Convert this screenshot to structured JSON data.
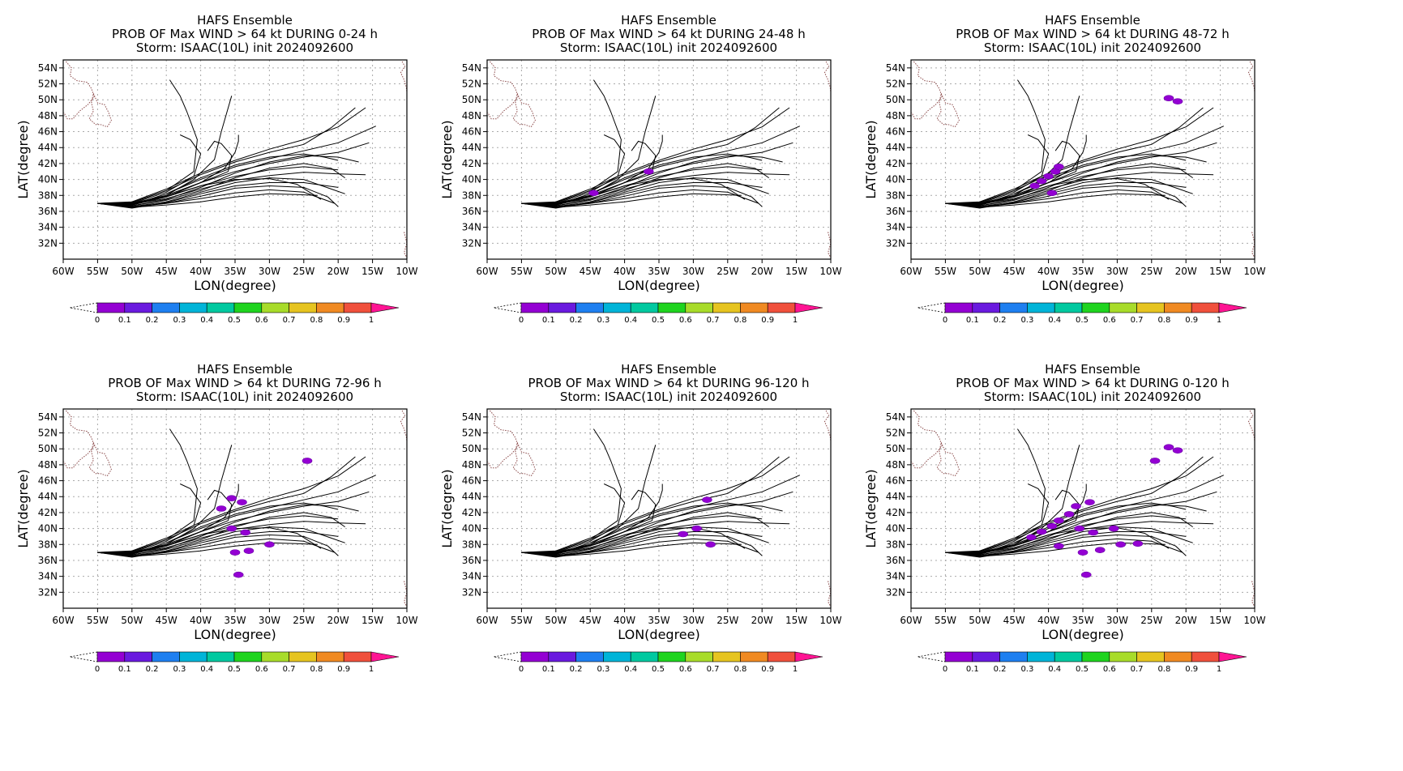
{
  "figure": {
    "colorbar": {
      "ticks": [
        "0",
        "0.1",
        "0.2",
        "0.3",
        "0.4",
        "0.5",
        "0.6",
        "0.7",
        "0.8",
        "0.9",
        "1"
      ],
      "colors": [
        "#9400d3",
        "#6a1adf",
        "#1e7ff0",
        "#00b4d8",
        "#00c9a0",
        "#1fd41f",
        "#a8dc2a",
        "#e6c420",
        "#f08a22",
        "#f0503c",
        "#ff1493"
      ]
    }
  },
  "chart_data": [
    {
      "type": "line",
      "title": [
        "HAFS Ensemble",
        "PROB OF Max WIND > 64 kt DURING  0-24 h",
        "Storm: ISAAC(10L) init 2024092600"
      ],
      "xlabel": "LON(degree)",
      "ylabel": "LAT(degree)",
      "x_ticks": [
        "60W",
        "55W",
        "50W",
        "45W",
        "40W",
        "35W",
        "30W",
        "25W",
        "20W",
        "15W",
        "10W"
      ],
      "y_ticks": [
        "32N",
        "34N",
        "36N",
        "38N",
        "40N",
        "42N",
        "44N",
        "46N",
        "48N",
        "50N",
        "52N",
        "54N"
      ],
      "xlim": [
        -60,
        -10
      ],
      "ylim": [
        30,
        55
      ],
      "grid": true,
      "probability_areas": []
    },
    {
      "type": "line",
      "title": [
        "HAFS Ensemble",
        "PROB OF Max WIND > 64 kt DURING 24-48 h",
        "Storm: ISAAC(10L) init 2024092600"
      ],
      "xlabel": "LON(degree)",
      "ylabel": "LAT(degree)",
      "x_ticks": [
        "60W",
        "55W",
        "50W",
        "45W",
        "40W",
        "35W",
        "30W",
        "25W",
        "20W",
        "15W",
        "10W"
      ],
      "y_ticks": [
        "32N",
        "34N",
        "36N",
        "38N",
        "40N",
        "42N",
        "44N",
        "46N",
        "48N",
        "50N",
        "52N",
        "54N"
      ],
      "xlim": [
        -60,
        -10
      ],
      "ylim": [
        30,
        55
      ],
      "grid": true,
      "probability_areas": [
        {
          "lon": -44.5,
          "lat": 38.3,
          "value": 0.05
        },
        {
          "lon": -36.5,
          "lat": 41.0,
          "value": 0.05
        }
      ]
    },
    {
      "type": "line",
      "title": [
        "HAFS Ensemble",
        "PROB OF Max WIND > 64 kt DURING 48-72 h",
        "Storm: ISAAC(10L) init 2024092600"
      ],
      "xlabel": "LON(degree)",
      "ylabel": "LAT(degree)",
      "x_ticks": [
        "60W",
        "55W",
        "50W",
        "45W",
        "40W",
        "35W",
        "30W",
        "25W",
        "20W",
        "15W",
        "10W"
      ],
      "y_ticks": [
        "32N",
        "34N",
        "36N",
        "38N",
        "40N",
        "42N",
        "44N",
        "46N",
        "48N",
        "50N",
        "52N",
        "54N"
      ],
      "xlim": [
        -60,
        -10
      ],
      "ylim": [
        30,
        55
      ],
      "grid": true,
      "probability_areas": [
        {
          "lon": -42.0,
          "lat": 39.2,
          "value": 0.05
        },
        {
          "lon": -41.0,
          "lat": 39.8,
          "value": 0.05
        },
        {
          "lon": -40.0,
          "lat": 40.4,
          "value": 0.05
        },
        {
          "lon": -39.0,
          "lat": 41.0,
          "value": 0.05
        },
        {
          "lon": -38.5,
          "lat": 41.6,
          "value": 0.05
        },
        {
          "lon": -39.5,
          "lat": 38.3,
          "value": 0.05
        },
        {
          "lon": -22.5,
          "lat": 50.2,
          "value": 0.05
        },
        {
          "lon": -21.2,
          "lat": 49.8,
          "value": 0.05
        }
      ]
    },
    {
      "type": "line",
      "title": [
        "HAFS Ensemble",
        "PROB OF Max WIND > 64 kt DURING 72-96 h",
        "Storm: ISAAC(10L) init 2024092600"
      ],
      "xlabel": "LON(degree)",
      "ylabel": "LAT(degree)",
      "x_ticks": [
        "60W",
        "55W",
        "50W",
        "45W",
        "40W",
        "35W",
        "30W",
        "25W",
        "20W",
        "15W",
        "10W"
      ],
      "y_ticks": [
        "32N",
        "34N",
        "36N",
        "38N",
        "40N",
        "42N",
        "44N",
        "46N",
        "48N",
        "50N",
        "52N",
        "54N"
      ],
      "xlim": [
        -60,
        -10
      ],
      "ylim": [
        30,
        55
      ],
      "grid": true,
      "probability_areas": [
        {
          "lon": -37.0,
          "lat": 42.5,
          "value": 0.05
        },
        {
          "lon": -35.5,
          "lat": 43.8,
          "value": 0.05
        },
        {
          "lon": -34.0,
          "lat": 43.3,
          "value": 0.05
        },
        {
          "lon": -35.5,
          "lat": 40.0,
          "value": 0.05
        },
        {
          "lon": -33.5,
          "lat": 39.5,
          "value": 0.05
        },
        {
          "lon": -35.0,
          "lat": 37.0,
          "value": 0.05
        },
        {
          "lon": -33.0,
          "lat": 37.2,
          "value": 0.05
        },
        {
          "lon": -30.0,
          "lat": 38.0,
          "value": 0.05
        },
        {
          "lon": -34.5,
          "lat": 34.2,
          "value": 0.05
        },
        {
          "lon": -24.5,
          "lat": 48.5,
          "value": 0.05
        }
      ]
    },
    {
      "type": "line",
      "title": [
        "HAFS Ensemble",
        "PROB OF Max WIND > 64 kt DURING 96-120 h",
        "Storm: ISAAC(10L) init 2024092600"
      ],
      "xlabel": "LON(degree)",
      "ylabel": "LAT(degree)",
      "x_ticks": [
        "60W",
        "55W",
        "50W",
        "45W",
        "40W",
        "35W",
        "30W",
        "25W",
        "20W",
        "15W",
        "10W"
      ],
      "y_ticks": [
        "32N",
        "34N",
        "36N",
        "38N",
        "40N",
        "42N",
        "44N",
        "46N",
        "48N",
        "50N",
        "52N",
        "54N"
      ],
      "xlim": [
        -60,
        -10
      ],
      "ylim": [
        30,
        55
      ],
      "grid": true,
      "probability_areas": [
        {
          "lon": -29.5,
          "lat": 40.0,
          "value": 0.05
        },
        {
          "lon": -31.5,
          "lat": 39.3,
          "value": 0.05
        },
        {
          "lon": -28.0,
          "lat": 43.6,
          "value": 0.05
        },
        {
          "lon": -27.5,
          "lat": 38.0,
          "value": 0.05
        }
      ]
    },
    {
      "type": "line",
      "title": [
        "HAFS Ensemble",
        "PROB OF Max WIND > 64 kt DURING 0-120 h",
        "Storm: ISAAC(10L) init 2024092600"
      ],
      "xlabel": "LON(degree)",
      "ylabel": "LAT(degree)",
      "x_ticks": [
        "60W",
        "55W",
        "50W",
        "45W",
        "40W",
        "35W",
        "30W",
        "25W",
        "20W",
        "15W",
        "10W"
      ],
      "y_ticks": [
        "32N",
        "34N",
        "36N",
        "38N",
        "40N",
        "42N",
        "44N",
        "46N",
        "48N",
        "50N",
        "52N",
        "54N"
      ],
      "xlim": [
        -60,
        -10
      ],
      "ylim": [
        30,
        55
      ],
      "grid": true,
      "probability_areas": [
        {
          "lon": -42.5,
          "lat": 38.9,
          "value": 0.1
        },
        {
          "lon": -41.0,
          "lat": 39.6,
          "value": 0.1
        },
        {
          "lon": -39.5,
          "lat": 40.3,
          "value": 0.1
        },
        {
          "lon": -38.5,
          "lat": 41.0,
          "value": 0.1
        },
        {
          "lon": -37.0,
          "lat": 41.8,
          "value": 0.05
        },
        {
          "lon": -36.0,
          "lat": 42.8,
          "value": 0.05
        },
        {
          "lon": -34.0,
          "lat": 43.3,
          "value": 0.05
        },
        {
          "lon": -35.5,
          "lat": 40.0,
          "value": 0.05
        },
        {
          "lon": -33.5,
          "lat": 39.5,
          "value": 0.05
        },
        {
          "lon": -30.5,
          "lat": 40.0,
          "value": 0.05
        },
        {
          "lon": -38.5,
          "lat": 37.8,
          "value": 0.05
        },
        {
          "lon": -35.0,
          "lat": 37.0,
          "value": 0.05
        },
        {
          "lon": -32.5,
          "lat": 37.3,
          "value": 0.05
        },
        {
          "lon": -29.5,
          "lat": 38.0,
          "value": 0.05
        },
        {
          "lon": -27.0,
          "lat": 38.1,
          "value": 0.05
        },
        {
          "lon": -34.5,
          "lat": 34.2,
          "value": 0.05
        },
        {
          "lon": -24.5,
          "lat": 48.5,
          "value": 0.05
        },
        {
          "lon": -22.5,
          "lat": 50.2,
          "value": 0.05
        },
        {
          "lon": -21.2,
          "lat": 49.8,
          "value": 0.05
        }
      ]
    }
  ]
}
